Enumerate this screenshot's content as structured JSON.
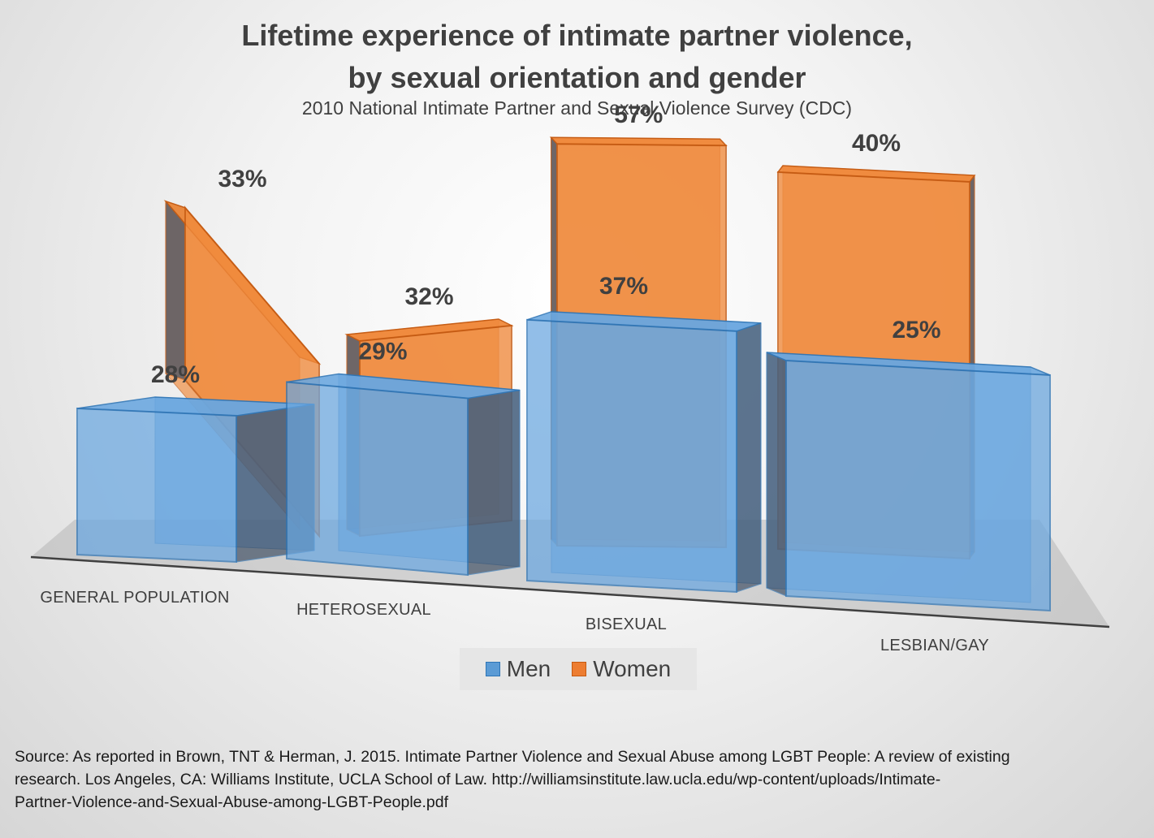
{
  "chart_data": {
    "type": "bar",
    "title_lines": [
      "Lifetime experience of intimate partner violence,",
      "by sexual orientation and gender"
    ],
    "subtitle": "2010 National Intimate Partner and Sexual Violence Survey (CDC)",
    "categories": [
      "GENERAL POPULATION",
      "HETEROSEXUAL",
      "BISEXUAL",
      "LESBIAN/GAY"
    ],
    "series": [
      {
        "name": "Men",
        "values": [
          28,
          29,
          37,
          25
        ],
        "labels": [
          "28%",
          "29%",
          "37%",
          "25%"
        ],
        "color": "#5B9BD5"
      },
      {
        "name": "Women",
        "values": [
          33,
          32,
          57,
          40
        ],
        "labels": [
          "33%",
          "32%",
          "57%",
          "40%"
        ],
        "color": "#ED7D31"
      }
    ],
    "unit": "%",
    "style": "3D clustered columns",
    "legend_position": "bottom",
    "grid": false
  },
  "source_lines": [
    "Source: As reported in Brown, TNT & Herman, J.  2015.  Intimate Partner Violence and Sexual Abuse among LGBT People: A review of existing",
    "research.  Los Angeles, CA: Williams Institute, UCLA School of Law.  http://williamsinstitute.law.ucla.edu/wp-content/uploads/Intimate-",
    "Partner-Violence-and-Sexual-Abuse-among-LGBT-People.pdf"
  ]
}
